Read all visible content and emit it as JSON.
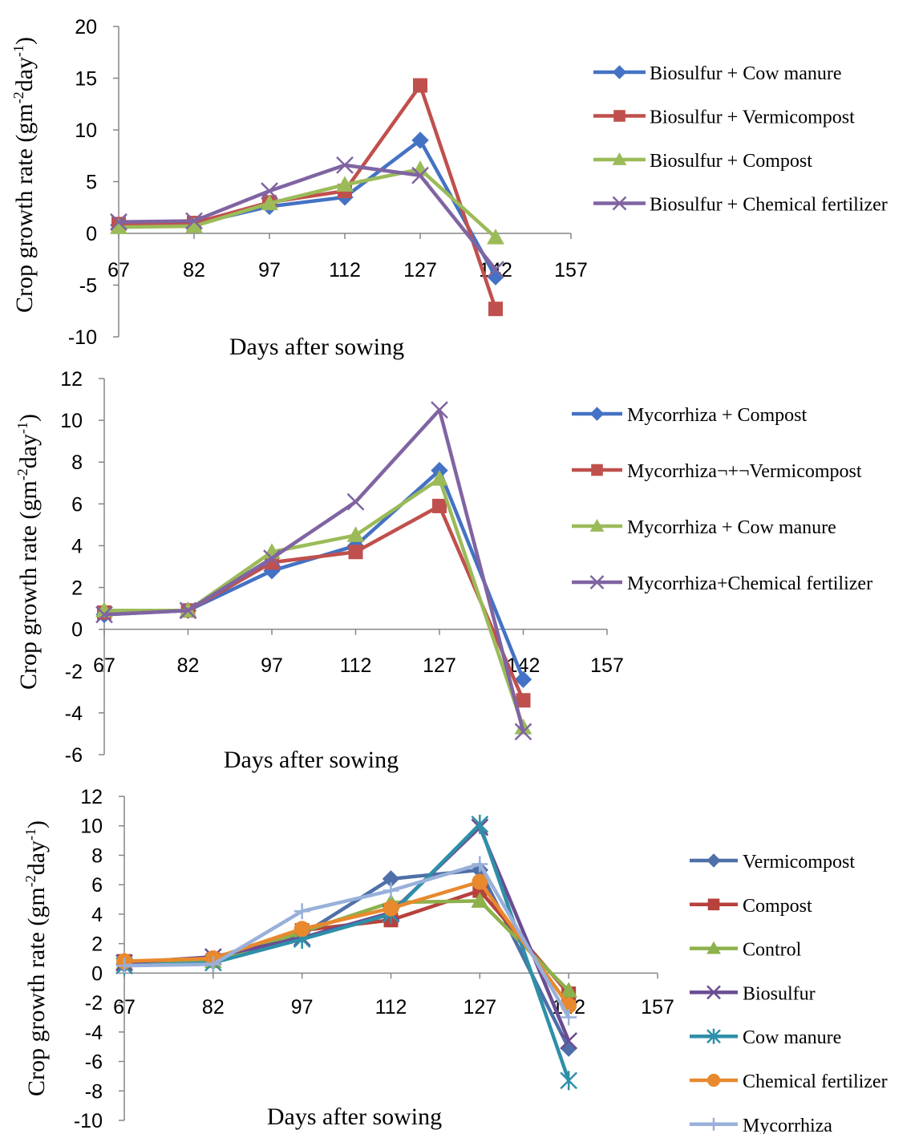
{
  "chart_data": [
    {
      "type": "line",
      "xlabel": "Days after sowing",
      "ylabel": "Crop growth rate (gm-2day-1)",
      "ylabel_parts": [
        "Crop growth rate (gm",
        "-2",
        "day",
        "-1",
        ")"
      ],
      "x_ticks": [
        "67",
        "82",
        "97",
        "112",
        "127",
        "142",
        "157"
      ],
      "y_ticks": [
        "20",
        "15",
        "10",
        "5",
        "0",
        "-5",
        "-10"
      ],
      "xlim": [
        67,
        157
      ],
      "ylim": [
        -10,
        20
      ],
      "grid": false,
      "legend_position": "right",
      "x": [
        67,
        82,
        97,
        112,
        127,
        142
      ],
      "series": [
        {
          "name": "Biosulfur + Cow manure",
          "color": "#4472C4",
          "marker": "diamond",
          "values": [
            0.8,
            0.9,
            2.6,
            3.5,
            9.0,
            -4.2
          ]
        },
        {
          "name": "Biosulfur + Vermicompost",
          "color": "#C0504D",
          "marker": "square",
          "values": [
            0.9,
            1.0,
            3.0,
            4.1,
            14.3,
            -7.3
          ]
        },
        {
          "name": "Biosulfur + Compost",
          "color": "#9BBB59",
          "marker": "triangle",
          "values": [
            0.6,
            0.7,
            2.9,
            4.7,
            6.2,
            -0.4
          ]
        },
        {
          "name": "Biosulfur + Chemical fertilizer",
          "color": "#8064A2",
          "marker": "x",
          "values": [
            1.1,
            1.2,
            4.1,
            6.6,
            5.6,
            -3.5
          ]
        }
      ]
    },
    {
      "type": "line",
      "xlabel": "Days after sowing",
      "ylabel": "Crop growth rate (gm-2day-1)",
      "ylabel_parts": [
        "Crop growth rate (gm",
        "-2",
        "day",
        "-1",
        ")"
      ],
      "x_ticks": [
        "67",
        "82",
        "97",
        "112",
        "127",
        "142",
        "157"
      ],
      "y_ticks": [
        "12",
        "10",
        "8",
        "6",
        "4",
        "2",
        "0",
        "-2",
        "-4",
        "-6"
      ],
      "xlim": [
        67,
        157
      ],
      "ylim": [
        -6,
        12
      ],
      "grid": false,
      "legend_position": "right",
      "x": [
        67,
        82,
        97,
        112,
        127,
        142
      ],
      "series": [
        {
          "name": "Mycorrhiza + Compost",
          "color": "#4472C4",
          "marker": "diamond",
          "values": [
            0.7,
            0.9,
            2.8,
            4.0,
            7.6,
            -2.4
          ]
        },
        {
          "name": "Mycorrhiza¬+¬Vermicompost",
          "color": "#C0504D",
          "marker": "square",
          "values": [
            0.8,
            0.9,
            3.2,
            3.7,
            5.9,
            -3.4
          ]
        },
        {
          "name": "Mycorrhiza + Cow manure",
          "color": "#9BBB59",
          "marker": "triangle",
          "values": [
            0.9,
            0.9,
            3.7,
            4.5,
            7.2,
            -4.7
          ]
        },
        {
          "name": "Mycorrhiza+Chemical fertilizer",
          "color": "#8064A2",
          "marker": "x",
          "values": [
            0.7,
            0.9,
            3.4,
            6.1,
            10.5,
            -4.9
          ]
        }
      ]
    },
    {
      "type": "line",
      "xlabel": "Days after sowing",
      "ylabel": "Crop growth rate (gm-2day-1)",
      "ylabel_parts": [
        "Crop growth rate (gm",
        "-2",
        "day",
        "-1",
        ")"
      ],
      "x_ticks": [
        "67",
        "82",
        "97",
        "112",
        "127",
        "142",
        "157"
      ],
      "y_ticks": [
        "12",
        "10",
        "8",
        "6",
        "4",
        "2",
        "0",
        "-2",
        "-4",
        "-6",
        "-8",
        "-10"
      ],
      "xlim": [
        67,
        157
      ],
      "ylim": [
        -10,
        12
      ],
      "grid": false,
      "legend_position": "right",
      "x": [
        67,
        82,
        97,
        112,
        127,
        142
      ],
      "series": [
        {
          "name": "Vermicompost",
          "color": "#4F6FA8",
          "marker": "diamond",
          "values": [
            0.6,
            0.8,
            2.6,
            6.4,
            7.0,
            -5.1
          ]
        },
        {
          "name": "Compost",
          "color": "#B7413C",
          "marker": "square",
          "values": [
            0.8,
            0.9,
            2.9,
            3.6,
            5.6,
            -1.4
          ]
        },
        {
          "name": "Control",
          "color": "#8DB14B",
          "marker": "triangle",
          "values": [
            0.7,
            0.8,
            2.8,
            4.8,
            4.9,
            -1.2
          ]
        },
        {
          "name": "Biosulfur",
          "color": "#6A4C93",
          "marker": "x",
          "values": [
            0.7,
            1.1,
            2.4,
            4.1,
            9.9,
            -4.6
          ]
        },
        {
          "name": "Cow manure",
          "color": "#2E8FA8",
          "marker": "star",
          "values": [
            0.5,
            0.7,
            2.3,
            4.0,
            10.1,
            -7.3
          ]
        },
        {
          "name": "Chemical fertilizer",
          "color": "#E8892E",
          "marker": "circle",
          "values": [
            0.8,
            1.0,
            3.0,
            4.4,
            6.2,
            -2.2
          ]
        },
        {
          "name": "Mycorrhiza",
          "color": "#98B0DA",
          "marker": "plus",
          "values": [
            0.5,
            0.6,
            4.2,
            5.6,
            7.4,
            -3.0
          ]
        }
      ]
    }
  ]
}
